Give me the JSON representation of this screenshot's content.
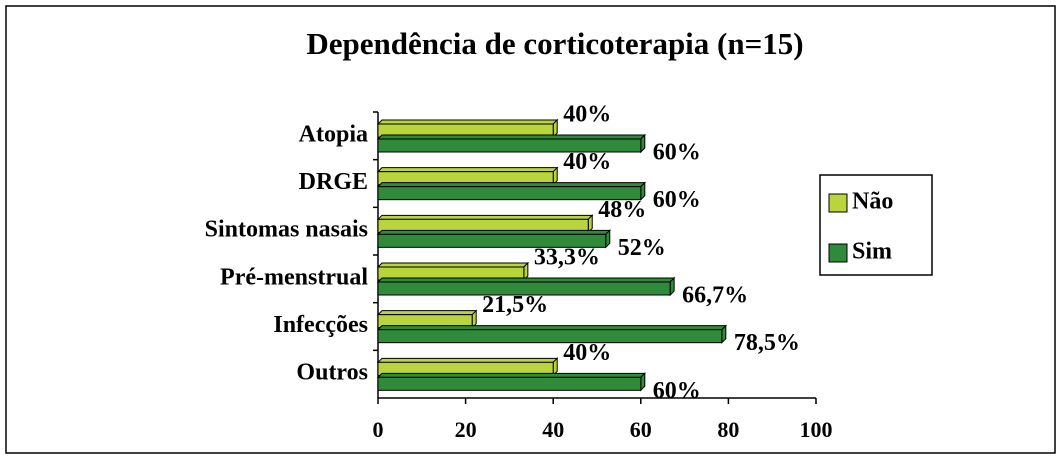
{
  "chart_data": {
    "type": "bar",
    "orientation": "horizontal",
    "title": "Dependência de corticoterapia (n=15)",
    "categories": [
      "Atopia",
      "DRGE",
      "Sintomas nasais",
      "Pré-menstrual",
      "Infecções",
      "Outros"
    ],
    "series": [
      {
        "name": "Não",
        "color": "#b9d43c",
        "values": [
          40,
          40,
          48,
          33.3,
          21.5,
          40
        ],
        "value_labels": [
          "40%",
          "40%",
          "48%",
          "33,3%",
          "21,5%",
          "40%"
        ]
      },
      {
        "name": "Sim",
        "color": "#2f8a3a",
        "values": [
          60,
          60,
          52,
          66.7,
          78.5,
          60
        ],
        "value_labels": [
          "60%",
          "60%",
          "52%",
          "66,7%",
          "78,5%",
          "60%"
        ]
      }
    ],
    "xlim": [
      0,
      100
    ],
    "xticks": [
      0,
      20,
      40,
      60,
      80,
      100
    ],
    "legend": "right"
  }
}
